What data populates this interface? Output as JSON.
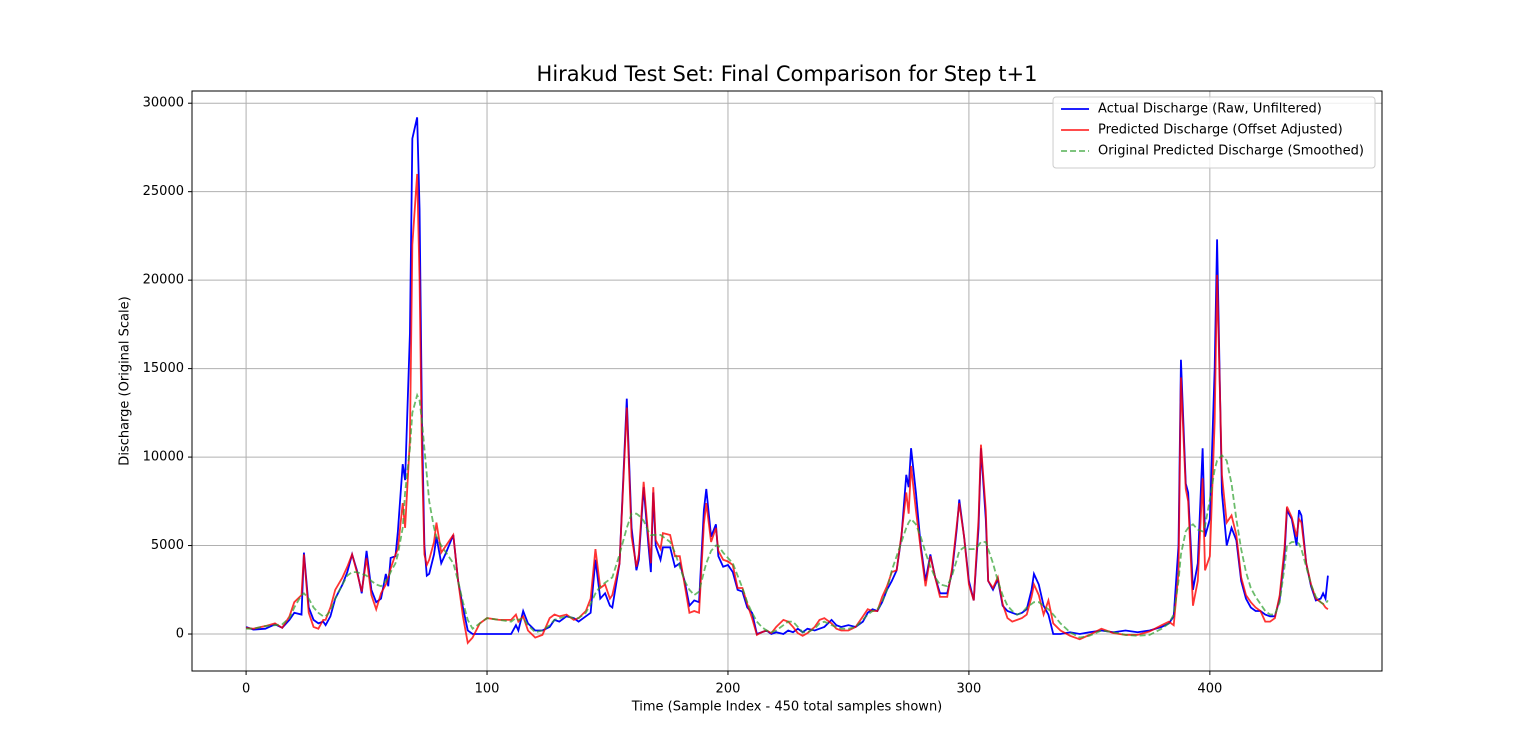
{
  "chart_data": {
    "type": "line",
    "title": "Hirakud Test Set: Final Comparison for Step t+1",
    "xlabel": "Time (Sample Index - 450 total samples shown)",
    "ylabel": "Discharge (Original Scale)",
    "x": [
      0,
      3,
      8,
      12,
      15,
      18,
      20,
      23,
      24,
      26,
      28,
      30,
      32,
      33,
      35,
      37,
      40,
      42,
      44,
      46,
      48,
      50,
      52,
      54,
      56,
      58,
      59,
      60,
      62,
      63,
      65,
      66,
      68,
      69,
      71,
      72,
      73,
      74,
      75,
      76,
      78,
      79,
      81,
      83,
      86,
      88,
      90,
      92,
      94,
      97,
      100,
      105,
      110,
      112,
      113,
      115,
      117,
      120,
      123,
      126,
      128,
      130,
      133,
      136,
      138,
      141,
      143,
      145,
      147,
      149,
      151,
      152,
      155,
      158,
      160,
      162,
      163,
      165,
      167,
      168,
      169,
      170,
      172,
      173,
      176,
      178,
      180,
      182,
      184,
      186,
      188,
      190,
      191,
      193,
      195,
      196,
      198,
      200,
      202,
      204,
      206,
      208,
      210,
      212,
      214,
      216,
      218,
      220,
      223,
      225,
      227,
      229,
      231,
      233,
      236,
      238,
      240,
      243,
      245,
      247,
      250,
      253,
      256,
      258,
      260,
      262,
      264,
      266,
      268,
      270,
      272,
      274,
      275,
      276,
      278,
      280,
      282,
      284,
      286,
      288,
      291,
      293,
      295,
      296,
      298,
      300,
      302,
      304,
      305,
      307,
      308,
      310,
      312,
      314,
      316,
      318,
      320,
      322,
      324,
      326,
      327,
      329,
      331,
      333,
      335,
      338,
      342,
      346,
      350,
      355,
      360,
      365,
      370,
      375,
      380,
      383,
      385,
      387,
      388,
      390,
      391,
      393,
      395,
      397,
      398,
      400,
      402,
      403,
      405,
      407,
      409,
      411,
      413,
      415,
      417,
      419,
      421,
      423,
      425,
      427,
      429,
      431,
      432,
      434,
      436,
      437,
      438,
      440,
      442,
      444,
      446,
      447,
      448,
      449
    ],
    "series": [
      {
        "name": "Actual Discharge (Raw, Unfiltered)",
        "color": "#0000ff",
        "linestyle": "solid",
        "values": [
          400,
          250,
          300,
          550,
          350,
          800,
          1200,
          1100,
          4600,
          1500,
          800,
          600,
          700,
          500,
          1000,
          2000,
          2800,
          3500,
          4500,
          3600,
          2300,
          4700,
          2500,
          1800,
          2000,
          3400,
          2700,
          4300,
          4400,
          5800,
          9600,
          8700,
          17000,
          28000,
          29200,
          24000,
          12000,
          5000,
          3300,
          3400,
          4500,
          5500,
          4000,
          4600,
          5600,
          3000,
          1500,
          200,
          0,
          0,
          0,
          0,
          0,
          500,
          200,
          1300,
          600,
          200,
          200,
          400,
          800,
          700,
          1000,
          900,
          700,
          1000,
          1200,
          4200,
          2000,
          2300,
          1600,
          1500,
          4000,
          13300,
          6000,
          3600,
          4200,
          8300,
          5000,
          3500,
          8000,
          5000,
          4200,
          4900,
          4900,
          3800,
          4000,
          3000,
          1600,
          1900,
          1800,
          7000,
          8200,
          5500,
          6200,
          4400,
          3800,
          3900,
          3500,
          2500,
          2400,
          1500,
          1200,
          0,
          100,
          200,
          0,
          100,
          0,
          200,
          100,
          300,
          100,
          300,
          200,
          300,
          400,
          800,
          500,
          400,
          500,
          400,
          700,
          1200,
          1400,
          1300,
          1800,
          2500,
          3000,
          3600,
          5500,
          9000,
          8300,
          10500,
          8000,
          5000,
          3000,
          4500,
          3200,
          2300,
          2300,
          3500,
          6000,
          7600,
          5500,
          3000,
          1900,
          6000,
          10500,
          6500,
          3000,
          2500,
          3100,
          1600,
          1300,
          1200,
          1100,
          1200,
          1400,
          2500,
          3400,
          2800,
          1600,
          1100,
          0,
          0,
          100,
          0,
          100,
          200,
          100,
          200,
          100,
          200,
          400,
          600,
          1000,
          5000,
          15500,
          8500,
          8000,
          2500,
          4000,
          10500,
          5500,
          6500,
          15000,
          22300,
          8000,
          5000,
          6000,
          5300,
          3000,
          2000,
          1500,
          1300,
          1300,
          1100,
          1000,
          1000,
          2000,
          4500,
          7000,
          6500,
          5000,
          7000,
          6700,
          4000,
          2700,
          1900,
          2000,
          2300,
          2000,
          3300
        ]
      },
      {
        "name": "Predicted Discharge (Offset Adjusted)",
        "color": "#ff0000",
        "linestyle": "solid",
        "values": [
          350,
          300,
          450,
          600,
          350,
          1000,
          1800,
          2200,
          4500,
          1200,
          400,
          300,
          800,
          800,
          1500,
          2500,
          3200,
          3800,
          4500,
          3500,
          2400,
          4300,
          2200,
          1400,
          2300,
          2800,
          3200,
          3700,
          4500,
          4800,
          7400,
          6000,
          11000,
          22000,
          26000,
          20000,
          10000,
          4500,
          3900,
          4200,
          5200,
          6300,
          4600,
          5000,
          5600,
          3000,
          1000,
          -500,
          -200,
          600,
          900,
          800,
          800,
          1100,
          700,
          1000,
          200,
          -200,
          -50,
          900,
          1100,
          1000,
          1100,
          800,
          900,
          1300,
          2000,
          4800,
          2600,
          2800,
          2000,
          2200,
          4000,
          12800,
          5500,
          3800,
          4500,
          8600,
          5400,
          4000,
          8300,
          5300,
          4800,
          5700,
          5600,
          4400,
          4400,
          2800,
          1200,
          1300,
          1200,
          6200,
          7400,
          5200,
          6000,
          4700,
          4200,
          4100,
          3900,
          2600,
          2600,
          1700,
          900,
          -50,
          100,
          200,
          50,
          400,
          800,
          700,
          400,
          50,
          -100,
          50,
          400,
          800,
          900,
          600,
          300,
          200,
          200,
          400,
          1000,
          1400,
          1300,
          1300,
          2100,
          2700,
          3500,
          3600,
          5600,
          8000,
          6800,
          9500,
          7000,
          4800,
          2700,
          4400,
          3200,
          2100,
          2100,
          3700,
          6200,
          7400,
          5500,
          2800,
          1900,
          6500,
          10700,
          7000,
          3000,
          2600,
          3200,
          1700,
          900,
          700,
          800,
          900,
          1100,
          2100,
          2800,
          2200,
          1100,
          1900,
          600,
          200,
          -100,
          -300,
          -50,
          300,
          50,
          -50,
          -50,
          150,
          500,
          700,
          500,
          3500,
          14500,
          8200,
          7500,
          1600,
          3000,
          8800,
          3600,
          4400,
          12000,
          20300,
          9000,
          6300,
          6700,
          5600,
          3200,
          2200,
          1800,
          1500,
          1300,
          700,
          700,
          900,
          2200,
          4900,
          7200,
          6600,
          5500,
          6500,
          6300,
          4000,
          2800,
          2000,
          1800,
          1700,
          1500,
          1400
        ]
      },
      {
        "name": "Original Predicted Discharge (Smoothed)",
        "color": "#2ca02c",
        "linestyle": "dashed",
        "values": [
          300,
          300,
          450,
          500,
          550,
          900,
          1500,
          2200,
          2300,
          2000,
          1500,
          1200,
          1000,
          1000,
          1300,
          2000,
          2800,
          3300,
          3500,
          3500,
          3400,
          3300,
          3000,
          2800,
          2700,
          3000,
          3200,
          3500,
          4000,
          4500,
          6000,
          8000,
          10500,
          12500,
          13500,
          13200,
          12000,
          10500,
          9000,
          7500,
          6000,
          5500,
          5000,
          4600,
          4000,
          3000,
          1800,
          800,
          300,
          600,
          900,
          800,
          700,
          900,
          800,
          900,
          500,
          100,
          200,
          500,
          800,
          900,
          1000,
          900,
          900,
          1200,
          1700,
          2300,
          2700,
          2900,
          3100,
          3200,
          4500,
          6000,
          6800,
          6800,
          6700,
          6400,
          5800,
          5600,
          5600,
          5600,
          5600,
          5500,
          5200,
          4600,
          3800,
          3000,
          2500,
          2200,
          2400,
          3500,
          4000,
          4700,
          5000,
          5000,
          4600,
          4300,
          4000,
          3300,
          2600,
          1800,
          1200,
          700,
          400,
          200,
          100,
          200,
          500,
          700,
          700,
          400,
          100,
          100,
          300,
          600,
          700,
          500,
          400,
          300,
          300,
          400,
          800,
          1100,
          1300,
          1400,
          1800,
          2500,
          3600,
          4400,
          5200,
          6000,
          6300,
          6500,
          6200,
          5500,
          4600,
          3800,
          3200,
          2800,
          2700,
          3300,
          4200,
          4700,
          4900,
          4800,
          4800,
          5000,
          5200,
          5200,
          4800,
          4000,
          3000,
          2200,
          1600,
          1300,
          1100,
          1200,
          1500,
          1700,
          1800,
          1800,
          1600,
          1400,
          1100,
          600,
          100,
          -200,
          -100,
          200,
          100,
          -50,
          -100,
          -50,
          300,
          600,
          1100,
          3000,
          4500,
          5800,
          6000,
          6200,
          5900,
          5800,
          6100,
          7600,
          9300,
          9800,
          10100,
          9800,
          8500,
          6500,
          4800,
          3500,
          2600,
          2100,
          1700,
          1300,
          1100,
          1100,
          1800,
          3800,
          5000,
          5200,
          5200,
          5100,
          4800,
          3800,
          2800,
          2100,
          1800,
          1700,
          1700,
          1900
        ]
      }
    ],
    "xlim": [
      -22.45,
      471.45
    ],
    "ylim": [
      -2090,
      30690
    ],
    "xticks": [
      0,
      100,
      200,
      300,
      400
    ],
    "yticks": [
      0,
      5000,
      10000,
      15000,
      20000,
      25000,
      30000
    ],
    "grid": true,
    "legend": "upper right"
  }
}
